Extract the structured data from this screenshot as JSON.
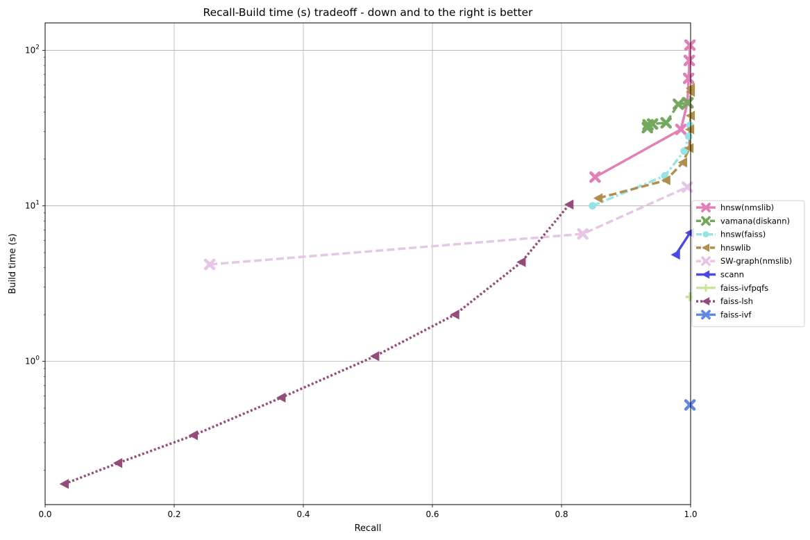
{
  "chart_data": {
    "type": "line",
    "title": "Recall-Build time (s) tradeoff - down and to the right is better",
    "xlabel": "Recall",
    "ylabel": "Build time (s)",
    "xlim": [
      0.0,
      1.0
    ],
    "ylim": [
      0.12,
      150
    ],
    "yscale": "log",
    "grid": true,
    "legend_position": "right",
    "x_ticks": [
      {
        "value": 0.0,
        "label": "0.0"
      },
      {
        "value": 0.2,
        "label": "0.2"
      },
      {
        "value": 0.4,
        "label": "0.4"
      },
      {
        "value": 0.6,
        "label": "0.6"
      },
      {
        "value": 0.8,
        "label": "0.8"
      },
      {
        "value": 1.0,
        "label": "1.0"
      }
    ],
    "y_ticks": [
      {
        "value": 1,
        "base": "10",
        "exp": "0"
      },
      {
        "value": 10,
        "base": "10",
        "exp": "1"
      },
      {
        "value": 100,
        "base": "10",
        "exp": "2"
      }
    ],
    "series": [
      {
        "name": "hnsw(nmslib)",
        "color": "#e37fb6",
        "dash": "solid",
        "marker": "x",
        "points": [
          [
            0.852,
            15.3
          ],
          [
            0.985,
            31.0
          ],
          [
            0.995,
            46.0
          ],
          [
            0.997,
            66.0
          ],
          [
            0.998,
            86.0
          ],
          [
            0.999,
            108.0
          ]
        ]
      },
      {
        "name": "vamana(diskann)",
        "color": "#73a85e",
        "dash": "dashed",
        "marker": "x",
        "points": [
          [
            0.933,
            31.8
          ],
          [
            0.934,
            33.2
          ],
          [
            0.941,
            33.6
          ],
          [
            0.962,
            34.2
          ],
          [
            0.981,
            45.0
          ],
          [
            0.996,
            46.0
          ]
        ]
      },
      {
        "name": "hnsw(faiss)",
        "color": "#95e3e3",
        "dash": "dashdot",
        "marker": "o",
        "points": [
          [
            0.848,
            10.0
          ],
          [
            0.96,
            15.6
          ],
          [
            0.99,
            22.5
          ],
          [
            0.997,
            28.0
          ],
          [
            0.999,
            33.0
          ]
        ]
      },
      {
        "name": "hnswlib",
        "color": "#b08f4d",
        "dash": "dashed",
        "marker": "<",
        "points": [
          [
            0.857,
            11.2
          ],
          [
            0.962,
            14.6
          ],
          [
            0.988,
            19.0
          ],
          [
            0.998,
            23.5
          ],
          [
            0.999,
            31.0
          ],
          [
            1.0,
            38.0
          ],
          [
            1.0,
            54.0
          ],
          [
            1.0,
            57.0
          ]
        ]
      },
      {
        "name": "SW-graph(nmslib)",
        "color": "#e6c5e6",
        "dash": "dashed",
        "marker": "x",
        "points": [
          [
            0.255,
            4.2
          ],
          [
            0.833,
            6.6
          ],
          [
            0.995,
            13.2
          ]
        ]
      },
      {
        "name": "scann",
        "color": "#4a49e3",
        "dash": "solid",
        "marker": "<",
        "points": [
          [
            0.977,
            4.85
          ],
          [
            0.999,
            6.7
          ]
        ]
      },
      {
        "name": "faiss-ivfpqfs",
        "color": "#c7e59a",
        "dash": "solid",
        "marker": "+",
        "points": [
          [
            0.999,
            2.6
          ]
        ]
      },
      {
        "name": "faiss-lsh",
        "color": "#944d7a",
        "dash": "dotted",
        "marker": "<",
        "points": [
          [
            0.03,
            0.163
          ],
          [
            0.113,
            0.222
          ],
          [
            0.23,
            0.335
          ],
          [
            0.366,
            0.585
          ],
          [
            0.511,
            1.08
          ],
          [
            0.635,
            2.0
          ],
          [
            0.738,
            4.35
          ],
          [
            0.812,
            10.2
          ]
        ]
      },
      {
        "name": "faiss-ivf",
        "color": "#6287e4",
        "dash": "solid",
        "marker": "x",
        "points": [
          [
            0.999,
            0.525
          ]
        ]
      }
    ]
  }
}
